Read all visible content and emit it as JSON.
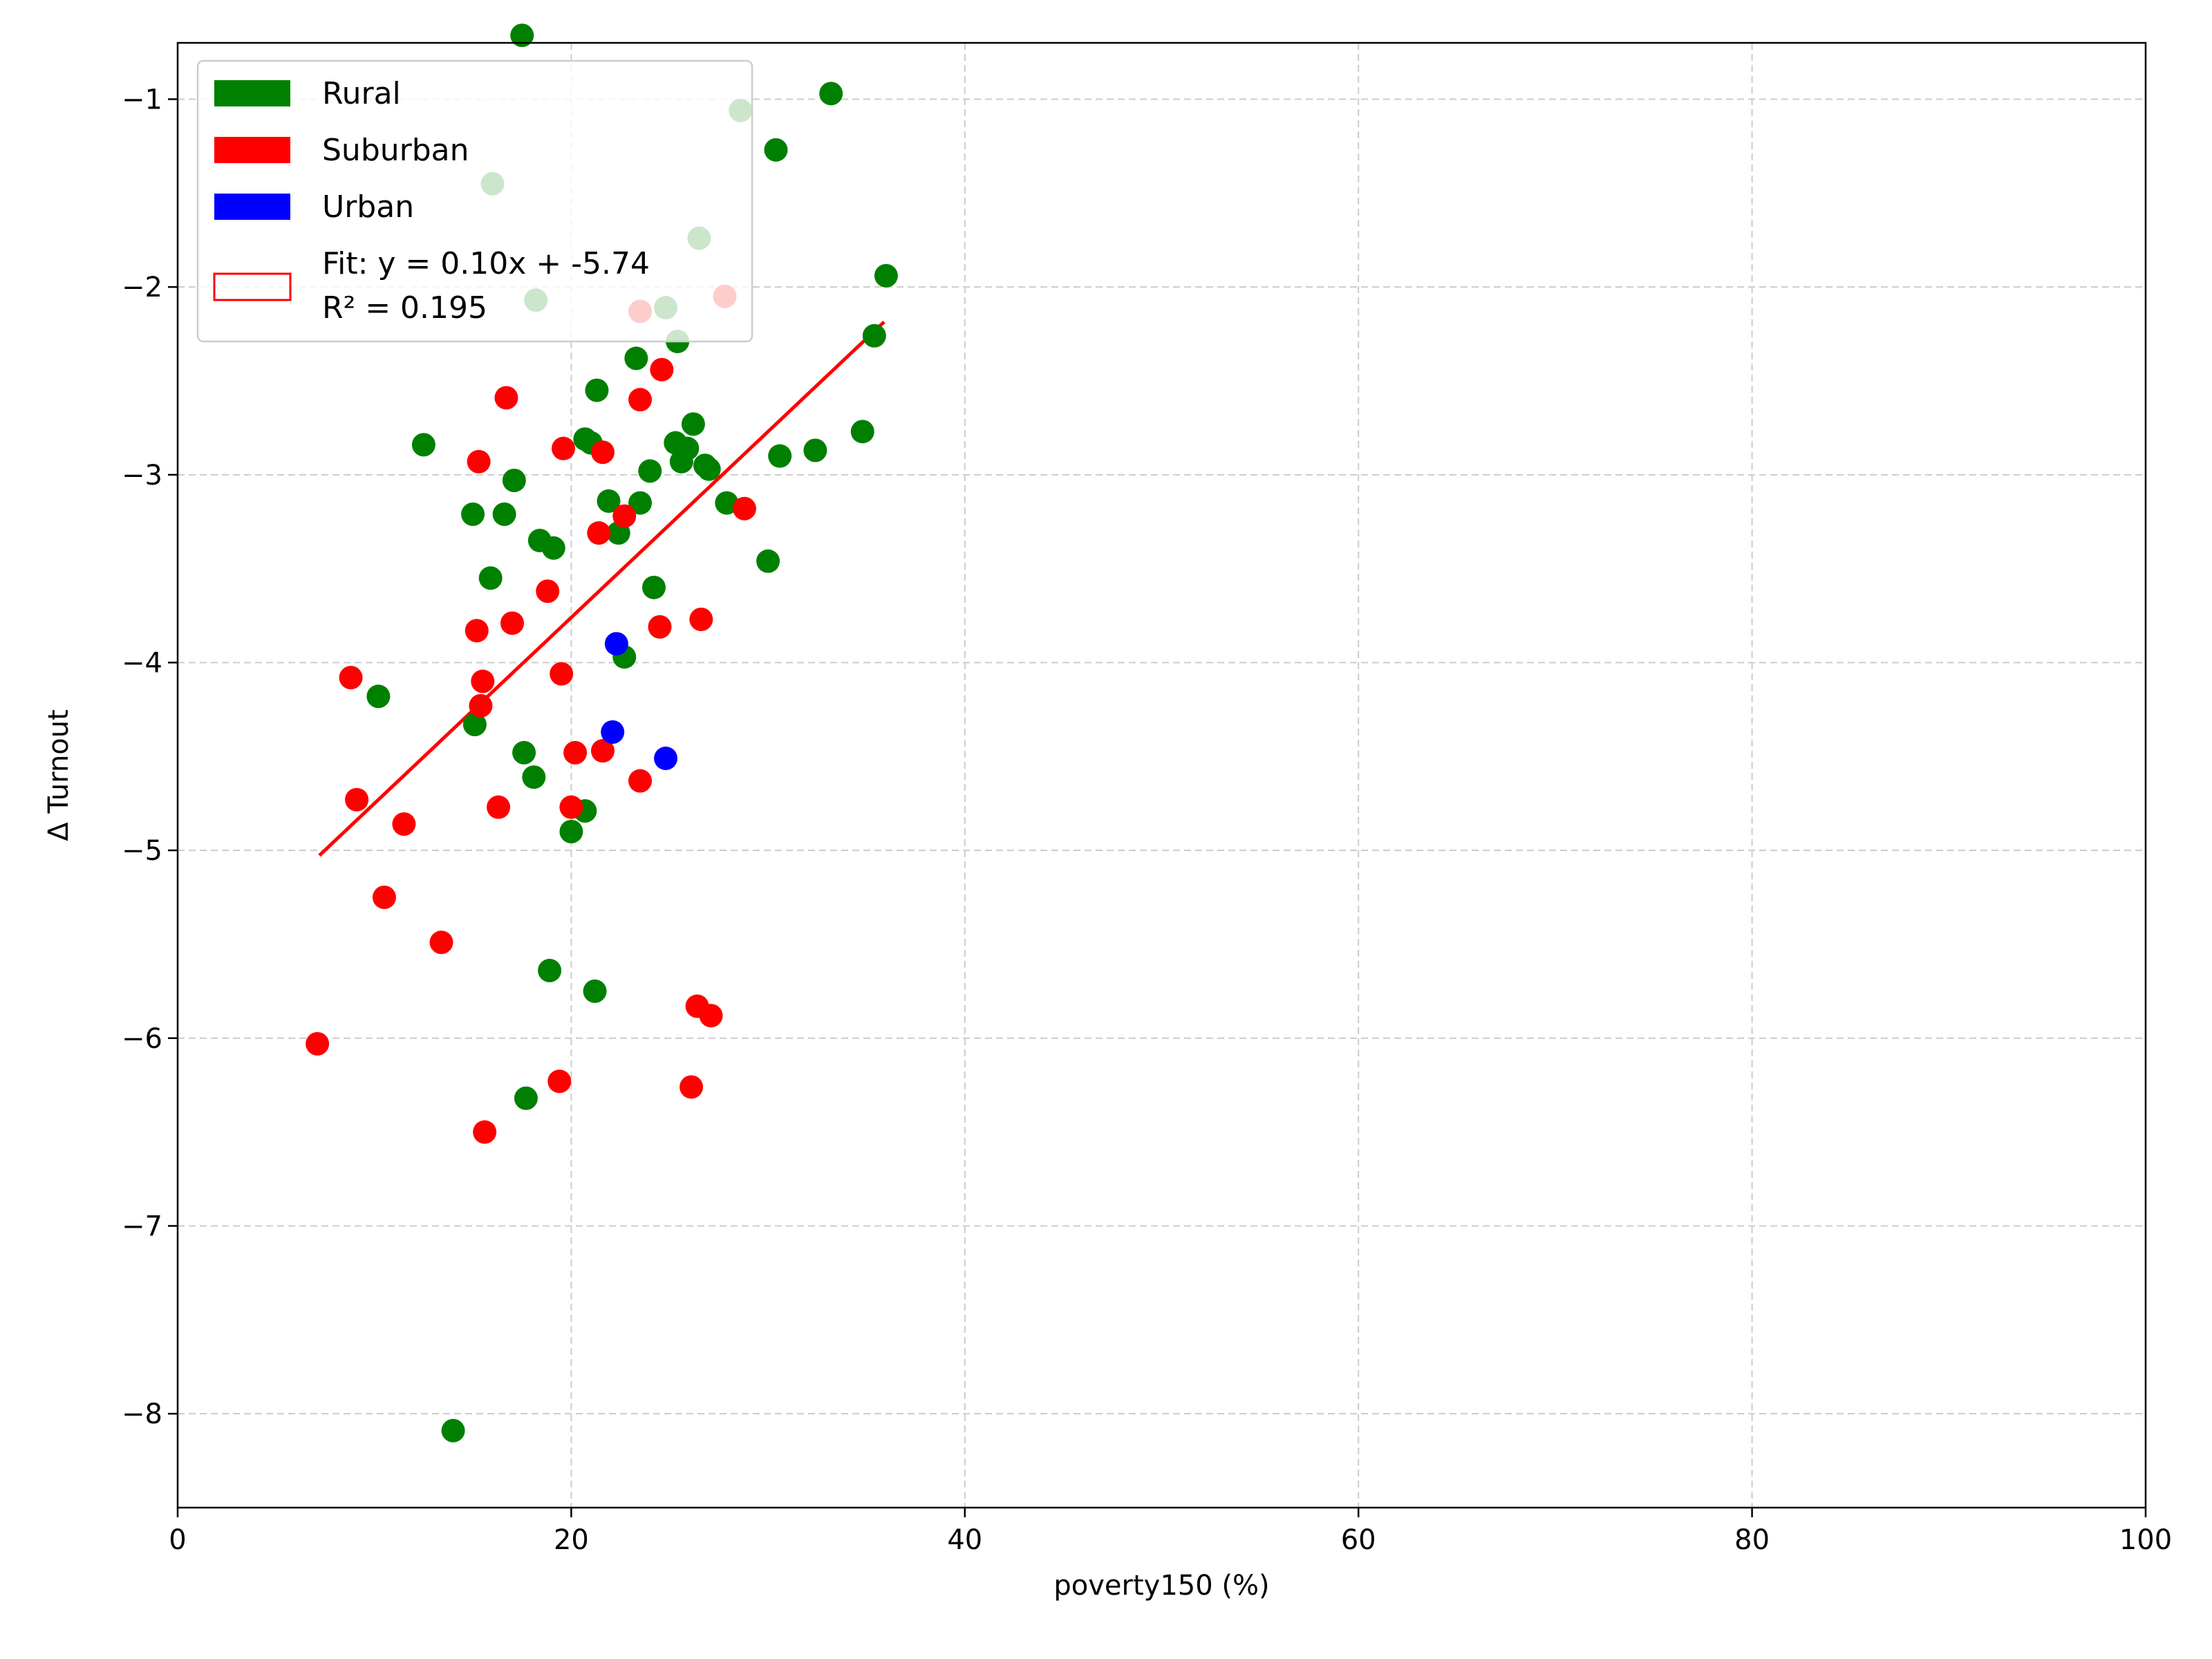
{
  "chart_data": {
    "type": "scatter",
    "xlabel": "poverty150 (%)",
    "ylabel": "Δ Turnout",
    "xlim": [
      0,
      100
    ],
    "ylim": [
      -8.5,
      -0.7
    ],
    "x_ticks": [
      0,
      20,
      40,
      60,
      80,
      100
    ],
    "x_tick_labels": [
      "0",
      "20",
      "40",
      "60",
      "80",
      "100"
    ],
    "y_ticks": [
      -8,
      -7,
      -6,
      -5,
      -4,
      -3,
      -2,
      -1
    ],
    "y_tick_labels": [
      "−8",
      "−7",
      "−6",
      "−5",
      "−4",
      "−3",
      "−2",
      "−1"
    ],
    "grid": true,
    "legend_position": "top-left",
    "series": [
      {
        "name": "Rural",
        "color": "#008000",
        "points": [
          [
            17.5,
            -0.66
          ],
          [
            33.2,
            -0.97
          ],
          [
            28.6,
            -1.06
          ],
          [
            30.4,
            -1.27
          ],
          [
            16.0,
            -1.45
          ],
          [
            26.5,
            -1.74
          ],
          [
            36.0,
            -1.94
          ],
          [
            18.2,
            -2.07
          ],
          [
            24.8,
            -2.11
          ],
          [
            35.4,
            -2.26
          ],
          [
            25.4,
            -2.29
          ],
          [
            23.3,
            -2.38
          ],
          [
            21.3,
            -2.55
          ],
          [
            26.2,
            -2.73
          ],
          [
            34.8,
            -2.77
          ],
          [
            20.7,
            -2.81
          ],
          [
            21.0,
            -2.83
          ],
          [
            12.5,
            -2.84
          ],
          [
            25.3,
            -2.83
          ],
          [
            25.9,
            -2.86
          ],
          [
            32.4,
            -2.87
          ],
          [
            30.6,
            -2.9
          ],
          [
            25.6,
            -2.93
          ],
          [
            26.8,
            -2.95
          ],
          [
            27.0,
            -2.97
          ],
          [
            24.0,
            -2.98
          ],
          [
            17.1,
            -3.03
          ],
          [
            21.9,
            -3.14
          ],
          [
            23.5,
            -3.15
          ],
          [
            27.9,
            -3.15
          ],
          [
            15.0,
            -3.21
          ],
          [
            16.6,
            -3.21
          ],
          [
            22.4,
            -3.31
          ],
          [
            18.4,
            -3.35
          ],
          [
            19.1,
            -3.39
          ],
          [
            30.0,
            -3.46
          ],
          [
            15.9,
            -3.55
          ],
          [
            24.2,
            -3.6
          ],
          [
            22.7,
            -3.97
          ],
          [
            10.2,
            -4.18
          ],
          [
            15.1,
            -4.33
          ],
          [
            17.6,
            -4.48
          ],
          [
            18.1,
            -4.61
          ],
          [
            20.7,
            -4.79
          ],
          [
            20.0,
            -4.9
          ],
          [
            18.9,
            -5.64
          ],
          [
            21.2,
            -5.75
          ],
          [
            17.7,
            -6.32
          ],
          [
            14.0,
            -8.09
          ]
        ]
      },
      {
        "name": "Suburban",
        "color": "#ff0000",
        "points": [
          [
            23.5,
            -2.13
          ],
          [
            27.8,
            -2.05
          ],
          [
            24.6,
            -2.44
          ],
          [
            16.7,
            -2.59
          ],
          [
            23.5,
            -2.6
          ],
          [
            19.6,
            -2.86
          ],
          [
            21.6,
            -2.88
          ],
          [
            15.3,
            -2.93
          ],
          [
            28.8,
            -3.18
          ],
          [
            22.7,
            -3.22
          ],
          [
            21.4,
            -3.31
          ],
          [
            18.8,
            -3.62
          ],
          [
            26.6,
            -3.77
          ],
          [
            17.0,
            -3.79
          ],
          [
            24.5,
            -3.81
          ],
          [
            15.2,
            -3.83
          ],
          [
            19.5,
            -4.06
          ],
          [
            8.8,
            -4.08
          ],
          [
            15.5,
            -4.1
          ],
          [
            15.4,
            -4.23
          ],
          [
            20.2,
            -4.48
          ],
          [
            21.6,
            -4.47
          ],
          [
            23.5,
            -4.63
          ],
          [
            9.1,
            -4.73
          ],
          [
            16.3,
            -4.77
          ],
          [
            20.0,
            -4.77
          ],
          [
            11.5,
            -4.86
          ],
          [
            10.5,
            -5.25
          ],
          [
            13.4,
            -5.49
          ],
          [
            26.4,
            -5.83
          ],
          [
            27.1,
            -5.88
          ],
          [
            7.1,
            -6.03
          ],
          [
            19.4,
            -6.23
          ],
          [
            26.1,
            -6.26
          ],
          [
            15.6,
            -6.5
          ]
        ]
      },
      {
        "name": "Urban",
        "color": "#0000ff",
        "points": [
          [
            22.3,
            -3.9
          ],
          [
            22.1,
            -4.37
          ],
          [
            24.8,
            -4.51
          ]
        ]
      }
    ],
    "fit": {
      "label_line1": "Fit: y = 0.10x + -5.74",
      "label_line2": "R² = 0.195",
      "color": "#ff0000",
      "x_range": [
        7.2,
        35.9
      ],
      "slope": 0.099,
      "intercept": -5.74
    }
  }
}
